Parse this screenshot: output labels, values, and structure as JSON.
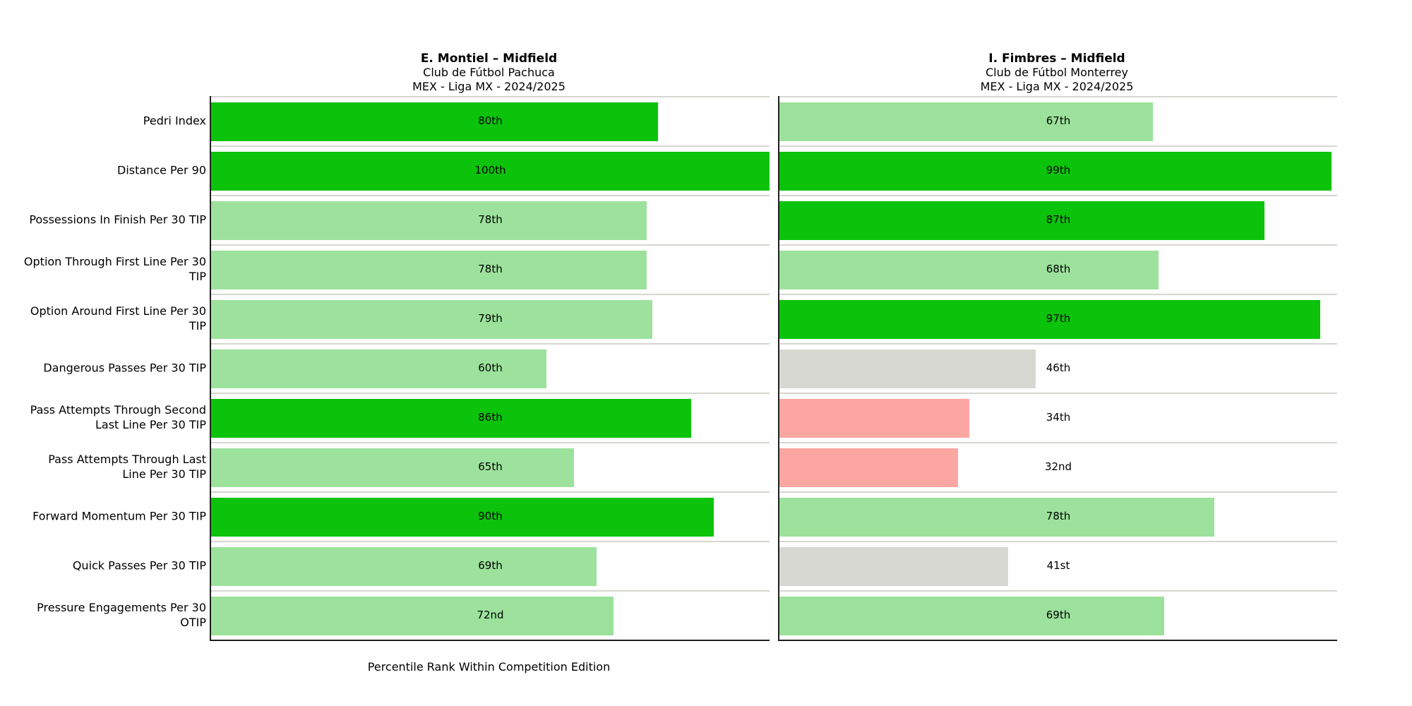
{
  "figure": {
    "background": "#ffffff"
  },
  "chart_data": {
    "type": "bar",
    "orientation": "horizontal",
    "categories": [
      "Pedri Index",
      "Distance Per 90",
      "Possessions In Finish Per 30 TIP",
      "Option Through First Line Per 30 TIP",
      "Option Around First Line Per 30 TIP",
      "Dangerous Passes Per 30 TIP",
      "Pass Attempts Through Second Last Line Per 30 TIP",
      "Pass Attempts Through Last Line Per 30 TIP",
      "Forward Momentum Per 30 TIP",
      "Quick Passes Per 30 TIP",
      "Pressure Engagements Per 30 OTIP"
    ],
    "series": [
      {
        "name": "E. Montiel – Midfield",
        "club": "Club de Fútbol Pachuca",
        "competition": "MEX - Liga MX - 2024/2025",
        "values": [
          80,
          100,
          78,
          78,
          79,
          60,
          86,
          65,
          90,
          69,
          72
        ],
        "value_labels": [
          "80th",
          "100th",
          "78th",
          "78th",
          "79th",
          "60th",
          "86th",
          "65th",
          "90th",
          "69th",
          "72nd"
        ]
      },
      {
        "name": "I. Fimbres – Midfield",
        "club": "Club de Fútbol Monterrey",
        "competition": "MEX - Liga MX - 2024/2025",
        "values": [
          67,
          99,
          87,
          68,
          97,
          46,
          34,
          32,
          78,
          41,
          69
        ],
        "value_labels": [
          "67th",
          "99th",
          "87th",
          "68th",
          "97th",
          "46th",
          "34th",
          "32nd",
          "78th",
          "41st",
          "69th"
        ]
      }
    ],
    "xlabel": "Percentile Rank Within Competition Edition",
    "xlim": [
      0,
      100
    ],
    "grid": "row-separator-lines",
    "legend": "none",
    "value_label_position": "centered-at-50-percent-of-axis",
    "bar_color_rules": {
      "high_80_and_above": "#0bc30b",
      "mid_50_to_79": "#9ce29c",
      "low_40_to_49": "#d8d8d2",
      "below_40": "#fba6a1"
    }
  },
  "colors": {
    "separator_line": "#d6d6d1",
    "axis_spine": "#1f1f1f",
    "value_text": "#000000",
    "background": "#ffffff"
  }
}
